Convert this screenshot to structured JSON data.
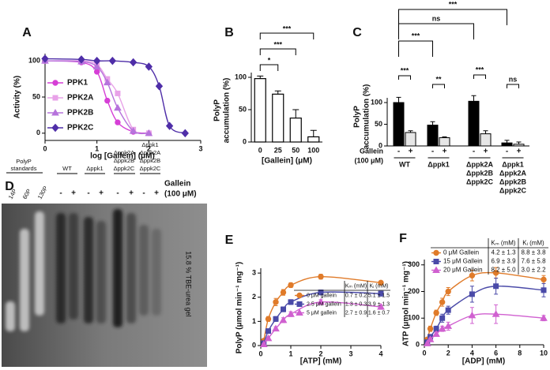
{
  "chart_data": [
    {
      "type": "line",
      "panel": "A",
      "xlabel": "log [Gallein] (μM)",
      "ylabel": "Activity (%)",
      "xlim": [
        0,
        3
      ],
      "xticks": [
        0,
        1,
        2,
        3
      ],
      "ylim": [
        -10,
        110
      ],
      "yticks": [
        0,
        50,
        100
      ],
      "legend": "left",
      "series": [
        {
          "name": "PPK1",
          "color": "#d63fd6",
          "marker": "circle",
          "x": [
            0,
            0.7,
            1.0,
            1.2,
            1.4,
            1.7,
            2.0
          ],
          "values": [
            100,
            98,
            85,
            45,
            15,
            2,
            0
          ]
        },
        {
          "name": "PPK2A",
          "color": "#e8a2e8",
          "marker": "square",
          "x": [
            0,
            0.7,
            1.0,
            1.2,
            1.4,
            1.7,
            2.0
          ],
          "values": [
            100,
            100,
            95,
            75,
            55,
            5,
            0
          ]
        },
        {
          "name": "PPK2B",
          "color": "#b673dc",
          "marker": "triangle",
          "x": [
            0,
            0.7,
            1.0,
            1.2,
            1.4,
            1.7,
            2.0
          ],
          "values": [
            100,
            99,
            92,
            70,
            35,
            3,
            0
          ]
        },
        {
          "name": "PPK2C",
          "color": "#4f2ea8",
          "marker": "diamond",
          "x": [
            0,
            0.7,
            1.0,
            1.3,
            1.7,
            2.0,
            2.2,
            2.4,
            2.7
          ],
          "values": [
            103,
            102,
            100,
            100,
            98,
            92,
            65,
            10,
            0
          ]
        }
      ]
    },
    {
      "type": "bar",
      "panel": "B",
      "xlabel": "[Gallein] (μM)",
      "ylabel": [
        "PolyP",
        "accumulation (%)"
      ],
      "categories": [
        "0",
        "25",
        "50",
        "100"
      ],
      "values": [
        98,
        74,
        37,
        8
      ],
      "errors": [
        4,
        5,
        13,
        10
      ],
      "color": "#ffffff",
      "ylim": [
        0,
        120
      ],
      "yticks": [
        0,
        50,
        100
      ],
      "annotations": [
        "*",
        "***",
        "***"
      ]
    },
    {
      "type": "grouped_bar",
      "panel": "C",
      "ylabel": [
        "PolyP",
        "accumulation (%)"
      ],
      "categories": [
        [
          "WT"
        ],
        [
          "Δppk1"
        ],
        [
          "Δppk2A",
          "Δppk2B",
          "Δppk2C"
        ],
        [
          "Δppk1",
          "Δppk2A",
          "Δppk2B",
          "Δppk2C"
        ]
      ],
      "legend_title": [
        "Gallein",
        "(100 μM)"
      ],
      "series": [
        {
          "name": "-",
          "color": "#000000",
          "values": [
            100,
            48,
            103,
            7
          ],
          "errors": [
            12,
            8,
            13,
            6
          ]
        },
        {
          "name": "+",
          "color": "#e6e6e6",
          "values": [
            31,
            19,
            28,
            4
          ],
          "errors": [
            4,
            2,
            7,
            5
          ]
        }
      ],
      "ylim": [
        0,
        130
      ],
      "yticks": [
        0,
        50,
        100
      ],
      "annotations": [
        "***",
        "**",
        "***",
        "ns",
        "***",
        "ns",
        "***"
      ]
    },
    {
      "type": "line",
      "panel": "E",
      "xlabel": "[ATP] (mM)",
      "ylabel": "PolyP (μmol min⁻¹ mg⁻¹)",
      "xlim": [
        0,
        4
      ],
      "xticks": [
        0,
        1,
        2,
        3,
        4
      ],
      "ylim": [
        0,
        3.2
      ],
      "yticks": [
        0,
        1,
        2,
        3
      ],
      "legend": "table",
      "table": {
        "columns": [
          "Kₘ (mM)",
          "Kᵢ (mM)"
        ],
        "rows": [
          [
            "0.7 ± 0.2",
            "5.1 ± 1.5"
          ],
          [
            "1.3 ± 0.3",
            "3.9 ± 1.3"
          ],
          [
            "2.7 ± 0.9",
            "1.6 ± 0.7"
          ]
        ]
      },
      "series": [
        {
          "name": "0 μM gallein",
          "color": "#e07b2a",
          "marker": "circle",
          "x": [
            0.1,
            0.25,
            0.5,
            0.75,
            1,
            2,
            4
          ],
          "values": [
            0.2,
            1.1,
            1.8,
            2.2,
            2.5,
            2.85,
            2.6
          ],
          "errors": [
            0.05,
            0.1,
            0.15,
            0.12,
            0.1,
            0.1,
            0.05
          ]
        },
        {
          "name": "2.5 μM gallein",
          "color": "#4a4aa8",
          "marker": "square",
          "x": [
            0.1,
            0.25,
            0.5,
            0.75,
            1,
            2,
            4
          ],
          "values": [
            0.1,
            0.6,
            1.1,
            1.5,
            1.8,
            2.2,
            2.15
          ],
          "errors": [
            0.05,
            0.08,
            0.1,
            0.1,
            0.1,
            0.1,
            0.1
          ]
        },
        {
          "name": "5 μM gallein",
          "color": "#d060d0",
          "marker": "triangle",
          "x": [
            0.1,
            0.25,
            0.5,
            0.75,
            1,
            2,
            4
          ],
          "values": [
            0.05,
            0.3,
            0.7,
            1.05,
            1.3,
            1.8,
            1.6
          ],
          "errors": [
            0.03,
            0.05,
            0.08,
            0.1,
            0.1,
            0.1,
            0.1
          ]
        }
      ]
    },
    {
      "type": "line",
      "panel": "F",
      "xlabel": "[ADP] (mM)",
      "ylabel": "ATP (μmol min⁻¹ mg⁻¹)",
      "xlim": [
        0,
        10
      ],
      "xticks": [
        0,
        2,
        4,
        6,
        8,
        10
      ],
      "ylim": [
        0,
        320
      ],
      "yticks": [
        0,
        100,
        200,
        300
      ],
      "legend": "table",
      "table": {
        "columns": [
          "Kₘ (mM)",
          "Kᵢ (mM)"
        ],
        "rows": [
          [
            "4.2 ± 1.3",
            "8.8 ± 3.8"
          ],
          [
            "6.9 ± 3.9",
            "7.6 ± 5.8"
          ],
          [
            "8.2 ± 5.0",
            "3.0 ± 2.2"
          ]
        ]
      },
      "series": [
        {
          "name": "0 μM Gallein",
          "color": "#e07b2a",
          "marker": "circle",
          "x": [
            0.25,
            0.5,
            1,
            1.5,
            2,
            4,
            6,
            10
          ],
          "values": [
            20,
            60,
            120,
            160,
            200,
            260,
            270,
            245
          ],
          "errors": [
            5,
            10,
            10,
            15,
            15,
            20,
            20,
            15
          ]
        },
        {
          "name": "15 μM Gallein",
          "color": "#4a4aa8",
          "marker": "square",
          "x": [
            0.25,
            0.5,
            1,
            1.5,
            2,
            4,
            6,
            10
          ],
          "values": [
            10,
            30,
            60,
            100,
            130,
            190,
            220,
            205
          ],
          "errors": [
            5,
            8,
            10,
            15,
            15,
            30,
            30,
            25
          ]
        },
        {
          "name": "20 μM Gallein",
          "color": "#d060d0",
          "marker": "triangle",
          "x": [
            0.25,
            0.5,
            1,
            1.5,
            2,
            4,
            6,
            10
          ],
          "values": [
            5,
            20,
            40,
            60,
            70,
            110,
            115,
            100
          ],
          "errors": [
            3,
            5,
            8,
            10,
            15,
            30,
            35,
            10
          ]
        }
      ]
    }
  ],
  "gel": {
    "panel": "D",
    "standards_label": [
      "PolyP",
      "standards"
    ],
    "standards": [
      "14P",
      "60P",
      "130P"
    ],
    "strains": [
      [
        "WT"
      ],
      [
        "Δppk1"
      ],
      [
        "Δppk2A",
        "Δppk2B",
        "Δppk2C"
      ],
      [
        "Δppk1",
        "Δppk2A",
        "Δppk2B",
        "Δppk2C"
      ]
    ],
    "treatment": [
      "-",
      "+"
    ],
    "treatment_label": [
      "Gallein",
      "(100 μM)"
    ],
    "gel_label": "15.8 % TBE-urea gel"
  }
}
